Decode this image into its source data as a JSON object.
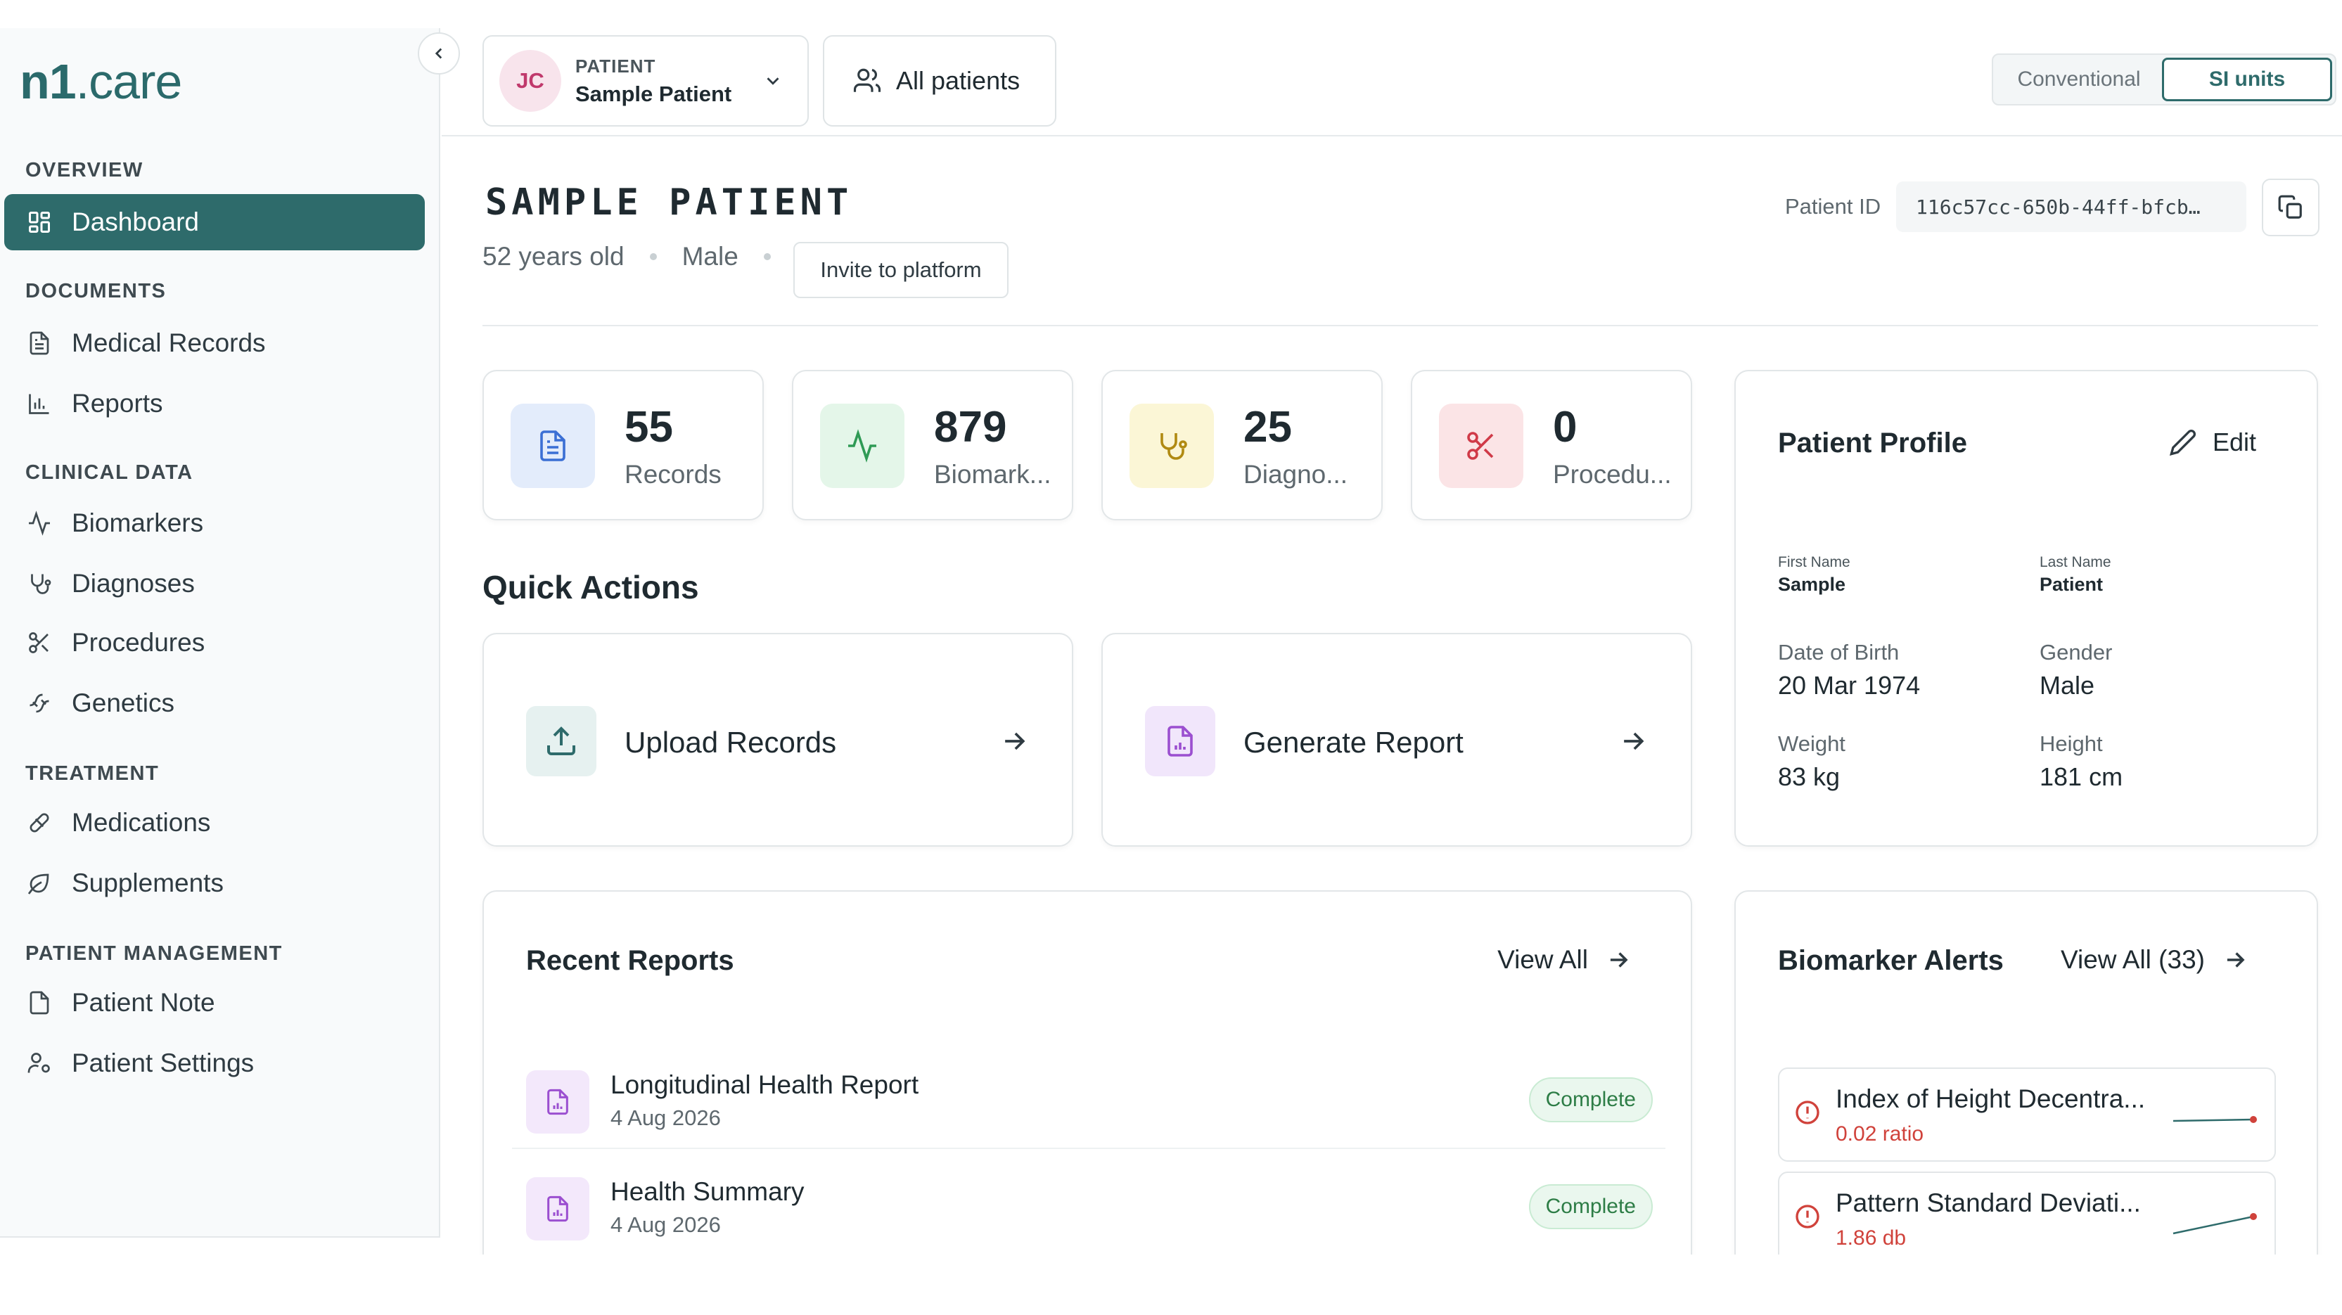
{
  "sidebar": {
    "logo": {
      "bold": "n1",
      "rest": ".care"
    },
    "sections": [
      {
        "title": "OVERVIEW",
        "items": [
          {
            "label": "Dashboard",
            "icon": "grid-icon",
            "active": true
          }
        ]
      },
      {
        "title": "DOCUMENTS",
        "items": [
          {
            "label": "Medical Records",
            "icon": "document-icon"
          },
          {
            "label": "Reports",
            "icon": "bar-chart-icon"
          }
        ]
      },
      {
        "title": "CLINICAL DATA",
        "items": [
          {
            "label": "Biomarkers",
            "icon": "activity-icon"
          },
          {
            "label": "Diagnoses",
            "icon": "stethoscope-icon"
          },
          {
            "label": "Procedures",
            "icon": "scissors-icon"
          },
          {
            "label": "Genetics",
            "icon": "dna-icon"
          }
        ]
      },
      {
        "title": "TREATMENT",
        "items": [
          {
            "label": "Medications",
            "icon": "pill-icon"
          },
          {
            "label": "Supplements",
            "icon": "leaf-icon"
          }
        ]
      },
      {
        "title": "PATIENT MANAGEMENT",
        "items": [
          {
            "label": "Patient Note",
            "icon": "note-icon"
          },
          {
            "label": "Patient Settings",
            "icon": "user-settings-icon"
          }
        ]
      }
    ]
  },
  "topbar": {
    "patient_selector": {
      "initials": "JC",
      "label": "PATIENT",
      "name": "Sample Patient"
    },
    "all_patients": "All patients",
    "units": {
      "options": [
        "Conventional",
        "SI units"
      ],
      "selected": "SI units"
    }
  },
  "header": {
    "title": "SAMPLE PATIENT",
    "age": "52 years old",
    "sex": "Male",
    "invite": "Invite to platform",
    "patient_id_label": "Patient ID",
    "patient_id": "116c57cc-650b-44ff-bfcb…"
  },
  "stats": [
    {
      "value": "55",
      "label": "Records",
      "icon": "document-icon",
      "bg": "#e3ecfb",
      "fg": "#3b6fd4"
    },
    {
      "value": "879",
      "label": "Biomark...",
      "icon": "activity-icon",
      "bg": "#e4f6e9",
      "fg": "#2f9a55"
    },
    {
      "value": "25",
      "label": "Diagno...",
      "icon": "stethoscope-icon",
      "bg": "#fbf6d6",
      "fg": "#b08a12"
    },
    {
      "value": "0",
      "label": "Procedu...",
      "icon": "scissors-icon",
      "bg": "#fbe4e6",
      "fg": "#d03a48"
    }
  ],
  "quick_actions": {
    "title": "Quick Actions",
    "items": [
      {
        "label": "Upload Records",
        "icon": "upload-icon",
        "bg": "#e6f1f0",
        "fg": "#2e6b6b"
      },
      {
        "label": "Generate Report",
        "icon": "report-icon",
        "bg": "#f1e6fb",
        "fg": "#9b4fd0"
      }
    ]
  },
  "profile": {
    "title": "Patient Profile",
    "edit": "Edit",
    "first_name_label": "First Name",
    "first_name": "Sample",
    "last_name_label": "Last Name",
    "last_name": "Patient",
    "dob_label": "Date of Birth",
    "dob": "20 Mar 1974",
    "gender_label": "Gender",
    "gender": "Male",
    "weight_label": "Weight",
    "weight": "83 kg",
    "height_label": "Height",
    "height": "181 cm"
  },
  "recent_reports": {
    "title": "Recent Reports",
    "view_all": "View All",
    "items": [
      {
        "title": "Longitudinal Health Report",
        "date": "4 Aug 2026",
        "status": "Complete"
      },
      {
        "title": "Health Summary",
        "date": "4 Aug 2026",
        "status": "Complete"
      }
    ]
  },
  "biomarker_alerts": {
    "title": "Biomarker Alerts",
    "view_all": "View All (33)",
    "items": [
      {
        "name": "Index of Height Decentra...",
        "value": "0.02 ratio"
      },
      {
        "name": "Pattern Standard Deviati...",
        "value": "1.86 db"
      }
    ]
  }
}
